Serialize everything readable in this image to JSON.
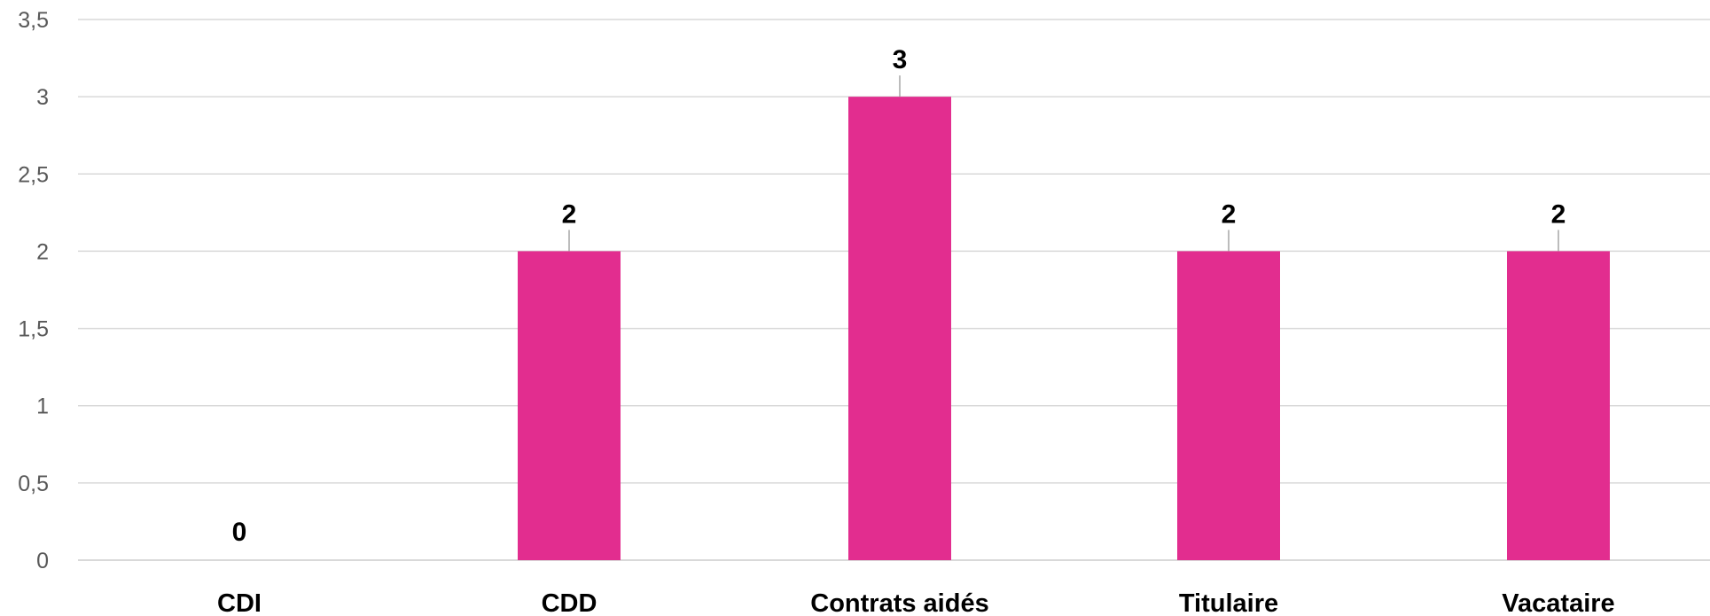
{
  "chart_data": {
    "type": "bar",
    "title": "",
    "xlabel": "",
    "ylabel": "",
    "categories": [
      "CDI",
      "CDD",
      "Contrats aidés",
      "Titulaire",
      "Vacataire"
    ],
    "values": [
      0,
      2,
      3,
      2,
      2
    ],
    "data_labels": [
      "0",
      "2",
      "3",
      "2",
      "2"
    ],
    "ylim": [
      0,
      3.5
    ],
    "yticks": [
      0,
      0.5,
      1,
      1.5,
      2,
      2.5,
      3,
      3.5
    ],
    "ytick_labels": [
      "0",
      "0,5",
      "1",
      "1,5",
      "2",
      "2,5",
      "3",
      "3,5"
    ],
    "grid": true,
    "legend": "none",
    "colors": {
      "bar": "#E22D8F",
      "grid": "#D9D9D9",
      "leader": "#A6A6A6"
    }
  }
}
